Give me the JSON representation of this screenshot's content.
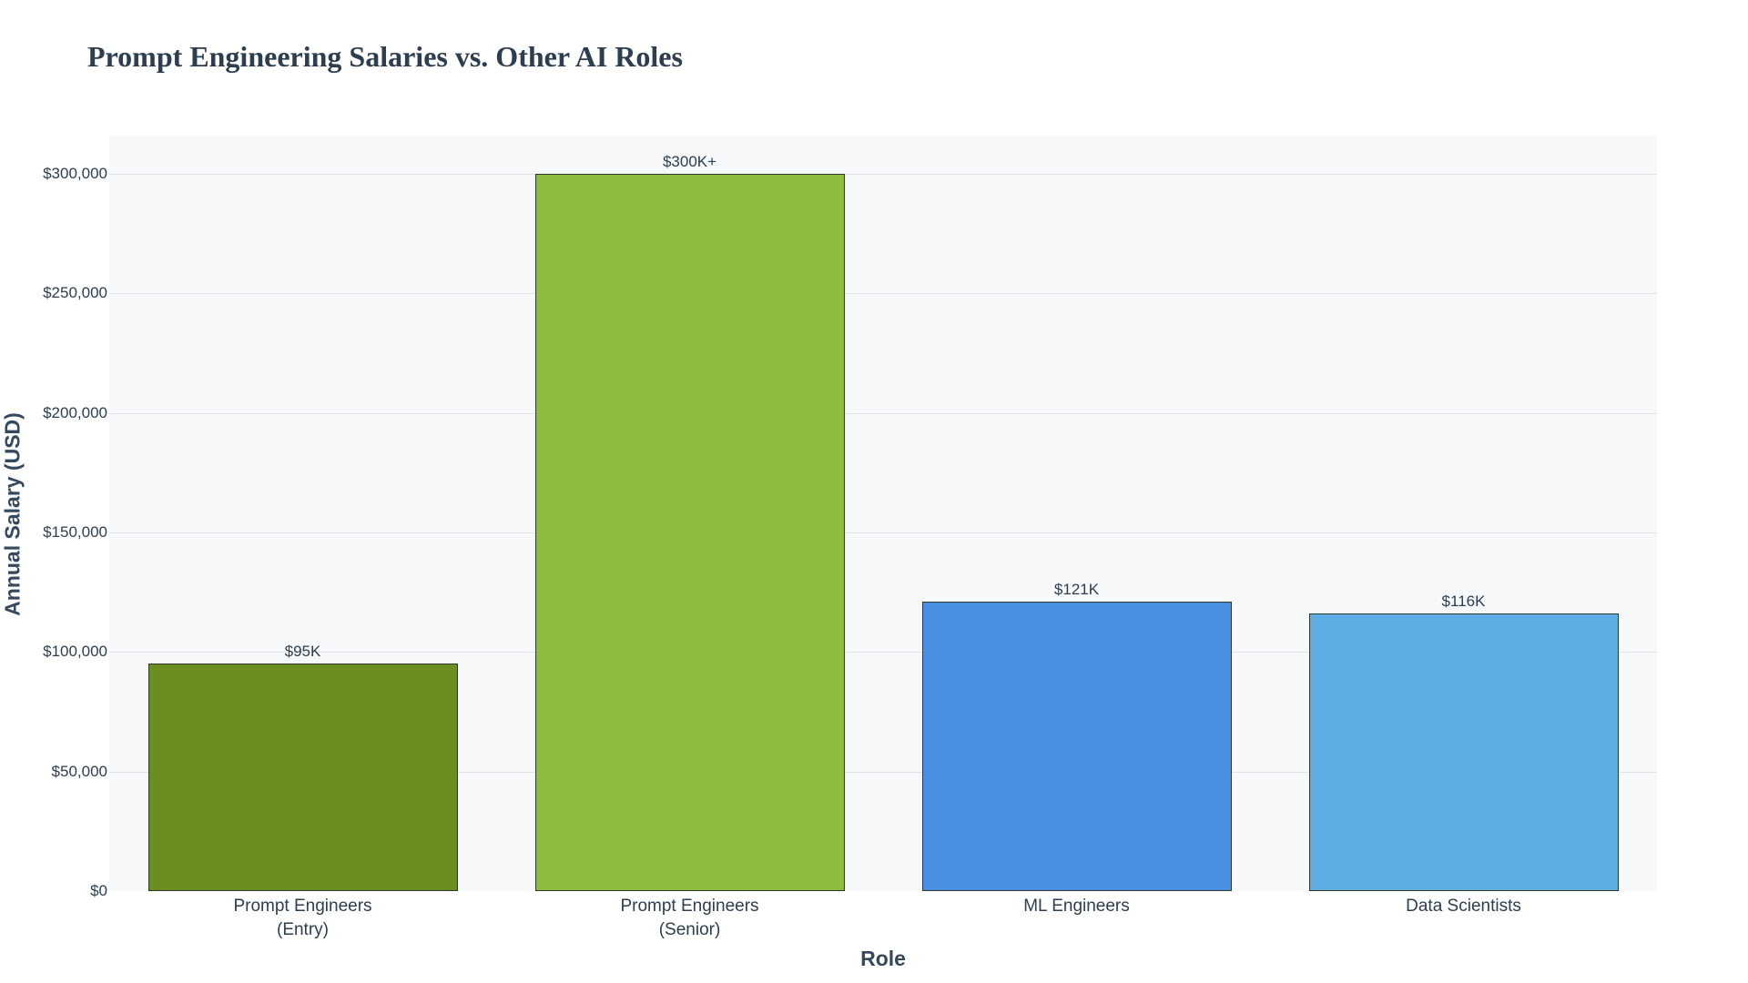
{
  "chart_data": {
    "type": "bar",
    "title": "Prompt Engineering Salaries vs. Other AI Roles",
    "xlabel": "Role",
    "ylabel": "Annual Salary (USD)",
    "categories": [
      "Prompt Engineers\n(Entry)",
      "Prompt Engineers\n(Senior)",
      "ML Engineers",
      "Data Scientists"
    ],
    "values": [
      95000,
      300000,
      121000,
      116000
    ],
    "data_labels": [
      "$95K",
      "$300K+",
      "$121K",
      "$116K"
    ],
    "colors": [
      "#6b8e23",
      "#8fbc3f",
      "#4a90e2",
      "#5dade2"
    ],
    "ylim": [
      0,
      315600
    ],
    "yticks": [
      0,
      50000,
      100000,
      150000,
      200000,
      250000,
      300000
    ],
    "ytick_labels": [
      "$0",
      "$50,000",
      "$100,000",
      "$150,000",
      "$200,000",
      "$250,000",
      "$300,000"
    ],
    "grid": true,
    "legend": false
  },
  "plot": {
    "background": "#f7f8fa",
    "gridline_color": "#dfe2e6"
  }
}
